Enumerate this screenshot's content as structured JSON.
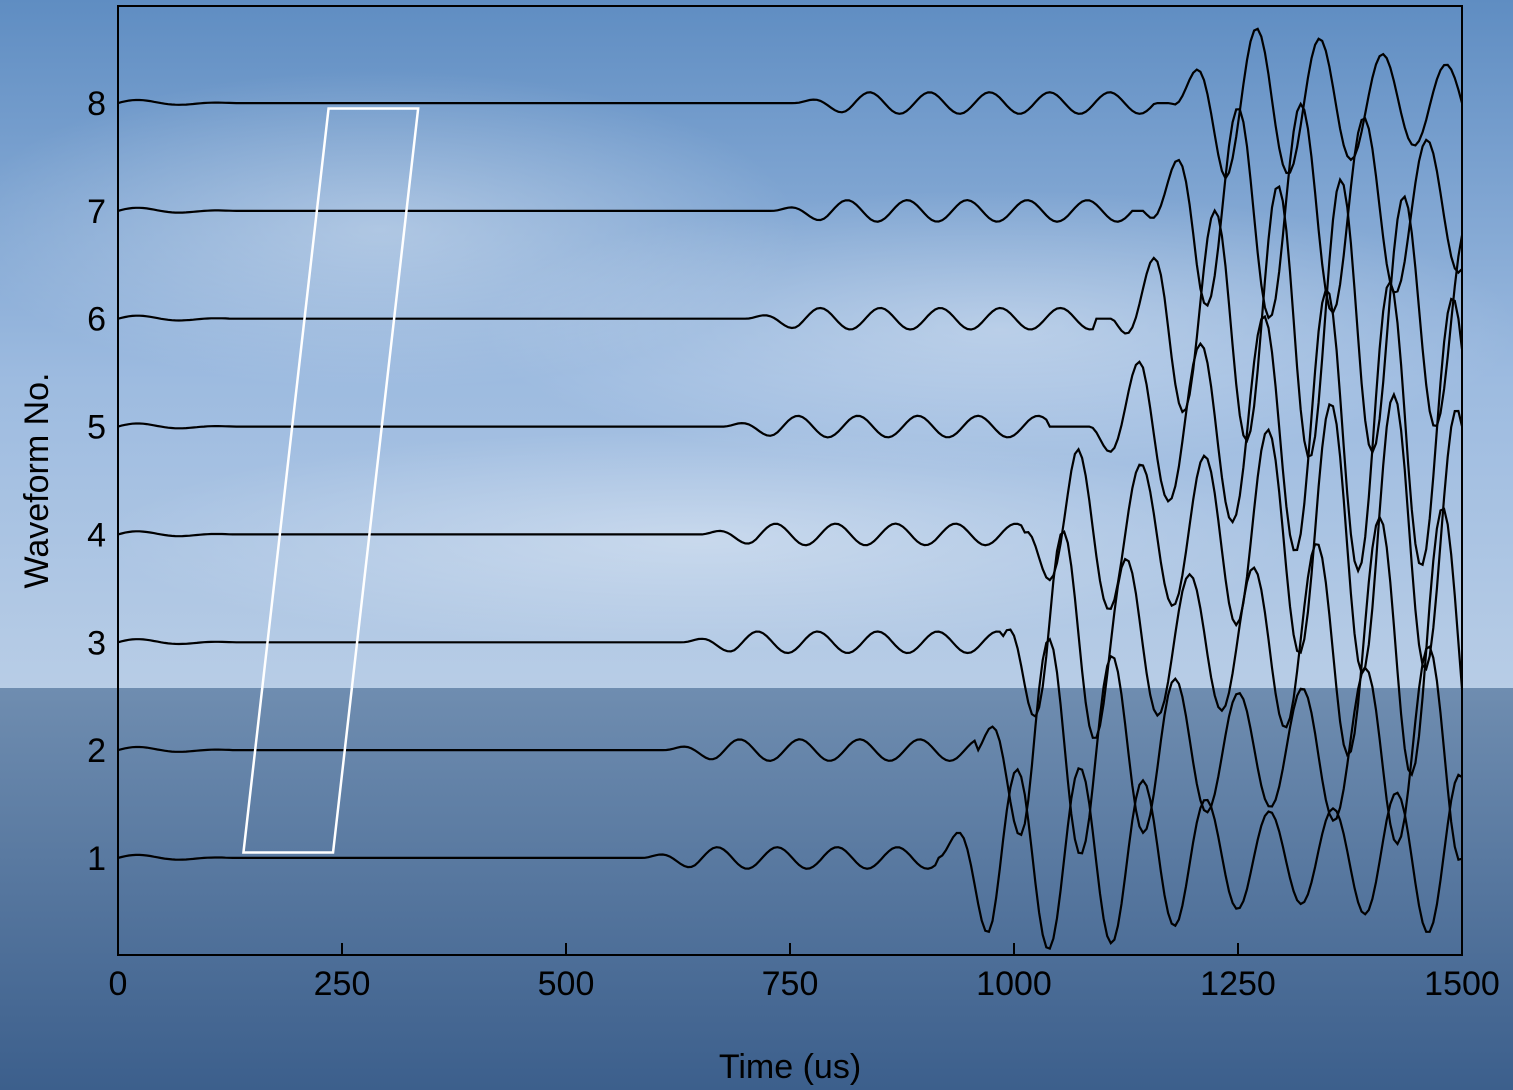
{
  "colors": {
    "sky_top": "#5f8dc2",
    "sky_mid": "#9dbbe0",
    "sky_horizon": "#b8cde6",
    "sea_top": "#6f8db0",
    "sea_bottom": "#3c5f8c",
    "trace": "#000000",
    "window": "#ffffff"
  },
  "chart_data": {
    "type": "line",
    "title": "",
    "xlabel": "Time (us)",
    "ylabel": "Waveform No.",
    "xlim": [
      0,
      1500
    ],
    "ylim": [
      0.1,
      8.9
    ],
    "x_ticks": [
      0,
      250,
      500,
      750,
      1000,
      1250,
      1500
    ],
    "y_ticks": [
      1,
      2,
      3,
      4,
      5,
      6,
      7,
      8
    ],
    "grid": false,
    "legend": "none",
    "series": [
      {
        "offset": 1,
        "arrival_us": 585,
        "tone_end_us": 915,
        "scatter_start_us": 915,
        "scatter_amp": 0.85,
        "period_us": 67
      },
      {
        "offset": 2,
        "arrival_us": 610,
        "tone_end_us": 960,
        "scatter_start_us": 960,
        "scatter_amp": 1.05,
        "period_us": 67
      },
      {
        "offset": 3,
        "arrival_us": 630,
        "tone_end_us": 985,
        "scatter_start_us": 985,
        "scatter_amp": 1.25,
        "period_us": 67
      },
      {
        "offset": 4,
        "arrival_us": 650,
        "tone_end_us": 1010,
        "scatter_start_us": 1010,
        "scatter_amp": 1.3,
        "period_us": 67
      },
      {
        "offset": 5,
        "arrival_us": 675,
        "tone_end_us": 1040,
        "scatter_start_us": 1085,
        "scatter_amp": 1.35,
        "period_us": 67
      },
      {
        "offset": 6,
        "arrival_us": 700,
        "tone_end_us": 1090,
        "scatter_start_us": 1110,
        "scatter_amp": 1.3,
        "period_us": 67
      },
      {
        "offset": 7,
        "arrival_us": 730,
        "tone_end_us": 1130,
        "scatter_start_us": 1145,
        "scatter_amp": 1.0,
        "period_us": 67
      },
      {
        "offset": 8,
        "arrival_us": 755,
        "tone_end_us": 1160,
        "scatter_start_us": 1175,
        "scatter_amp": 0.7,
        "period_us": 67
      }
    ],
    "window": {
      "description_points": [
        {
          "x": 140,
          "y": 1.05
        },
        {
          "x": 240,
          "y": 1.05
        },
        {
          "x": 335,
          "y": 7.95
        },
        {
          "x": 235,
          "y": 7.95
        }
      ]
    }
  }
}
